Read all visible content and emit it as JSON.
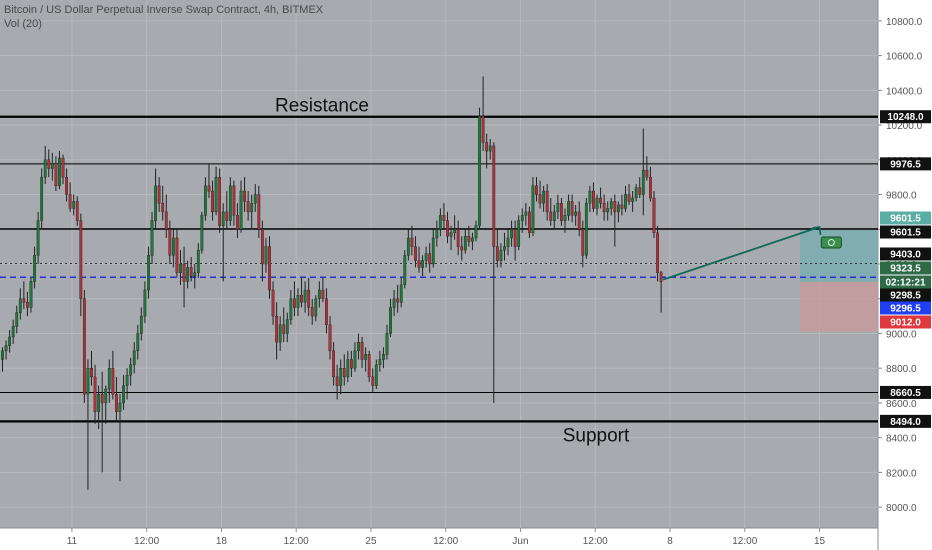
{
  "header": {
    "title": "Bitcoin / US Dollar Perpetual Inverse Swap Contract, 4h, BITMEX",
    "volume_label": "Vol (20)"
  },
  "colors": {
    "background": "#a7aaae",
    "axis_background": "#ffffff",
    "grid": "#b6b9bd",
    "up_candle": "#1e7a3a",
    "down_candle": "#b3303a",
    "wick": "#222222",
    "blue_line": "#2a2ae0",
    "profit_zone": "#7aaeb2",
    "loss_zone": "#c59b9e",
    "arrow": "#13685c",
    "badge_dark": "#111111",
    "badge_blue": "#1f3ff2",
    "badge_red": "#e0383e",
    "badge_green": "#2e6a46",
    "badge_teal": "#5aaea4"
  },
  "chart_data": {
    "type": "candlestick",
    "ylim": [
      7880,
      10920
    ],
    "y_ticks": [
      8000,
      8200,
      8400,
      8600,
      8800,
      9000,
      9200,
      9400,
      9600,
      9800,
      10000,
      10200,
      10400,
      10600,
      10800
    ],
    "y_tick_labels": [
      "8000.0",
      "8200.0",
      "8400.0",
      "8600.0",
      "8800.0",
      "9000.0",
      "9200.0",
      "9400.0",
      "9600.0",
      "9800.0",
      "10000.0",
      "10200.0",
      "10400.0",
      "10600.0",
      "10800.0"
    ],
    "x_labels": [
      "11",
      "12:00",
      "18",
      "12:00",
      "25",
      "12:00",
      "Jun",
      "12:00",
      "8",
      "12:00",
      "15"
    ],
    "x_ticks_bar": [
      19.5,
      40.5,
      61.5,
      82.5,
      103.5,
      124.5,
      145.5,
      166.5,
      187.5,
      208.5,
      229.5
    ],
    "grid": true,
    "annotations": [
      {
        "text": "Resistance",
        "near_price": 10248
      },
      {
        "text": "Support",
        "near_price": 8494
      }
    ],
    "levels": [
      {
        "price": 10248,
        "label": "10248.0",
        "style": "thick"
      },
      {
        "price": 9976.5,
        "label": "9976.5",
        "style": "thin"
      },
      {
        "price": 9601.5,
        "label": "9601.5",
        "style": "medium"
      },
      {
        "price": 9403,
        "label": "9403.0",
        "style": "dotted"
      },
      {
        "price": 9323.5,
        "label": "9323.5",
        "style": "blue-dashed"
      },
      {
        "price": 8660.5,
        "label": "8660.5",
        "style": "thin"
      },
      {
        "price": 8494,
        "label": "8494.0",
        "style": "thick"
      }
    ],
    "price_badges": [
      {
        "price": 9601.5,
        "label": "9601.5",
        "kind": "teal"
      },
      {
        "price": 9601.5,
        "label": "9601.5",
        "kind": "dark"
      },
      {
        "price": 9403,
        "label": "9403.0",
        "kind": "dark"
      },
      {
        "price": 9323.5,
        "label": "9323.5",
        "kind": "green"
      },
      {
        "price": 9298.5,
        "label": "02:12:21",
        "kind": "green"
      },
      {
        "price": 9298.5,
        "label": "9298.5",
        "kind": "dark"
      },
      {
        "price": 9296.5,
        "label": "9296.5",
        "kind": "blue"
      },
      {
        "price": 9012,
        "label": "9012.0",
        "kind": "red"
      }
    ],
    "position": {
      "entry": 9296.5,
      "target": 9601.5,
      "stop": 9012,
      "start_bar": 224,
      "end_bar": 246
    },
    "candles": [
      [
        8850,
        8920,
        8780,
        8900
      ],
      [
        8900,
        8960,
        8850,
        8930
      ],
      [
        8930,
        9020,
        8890,
        8980
      ],
      [
        8980,
        9080,
        8940,
        9040
      ],
      [
        9040,
        9160,
        9000,
        9120
      ],
      [
        9120,
        9260,
        9080,
        9200
      ],
      [
        9200,
        9300,
        9140,
        9180
      ],
      [
        9180,
        9240,
        9100,
        9150
      ],
      [
        9150,
        9320,
        9120,
        9300
      ],
      [
        9300,
        9500,
        9260,
        9450
      ],
      [
        9450,
        9700,
        9400,
        9650
      ],
      [
        9650,
        9950,
        9600,
        9900
      ],
      [
        9900,
        10080,
        9860,
        10000
      ],
      [
        10000,
        10060,
        9900,
        9950
      ],
      [
        9950,
        10040,
        9880,
        9980
      ],
      [
        9980,
        10020,
        9820,
        9850
      ],
      [
        9850,
        10050,
        9830,
        10010
      ],
      [
        10010,
        10030,
        9860,
        9900
      ],
      [
        9900,
        9950,
        9760,
        9800
      ],
      [
        9800,
        9870,
        9700,
        9720
      ],
      [
        9720,
        9800,
        9680,
        9760
      ],
      [
        9760,
        9790,
        9620,
        9650
      ],
      [
        9650,
        9690,
        9100,
        9200
      ],
      [
        9200,
        9250,
        8600,
        8650
      ],
      [
        8650,
        8850,
        8100,
        8800
      ],
      [
        8800,
        8900,
        8700,
        8750
      ],
      [
        8750,
        8820,
        8480,
        8550
      ],
      [
        8550,
        8700,
        8450,
        8650
      ],
      [
        8650,
        8780,
        8200,
        8600
      ],
      [
        8600,
        8700,
        8480,
        8680
      ],
      [
        8680,
        8850,
        8600,
        8800
      ],
      [
        8800,
        8900,
        8620,
        8650
      ],
      [
        8650,
        8750,
        8500,
        8550
      ],
      [
        8550,
        8650,
        8150,
        8600
      ],
      [
        8600,
        8760,
        8560,
        8700
      ],
      [
        8700,
        8800,
        8620,
        8760
      ],
      [
        8760,
        8860,
        8700,
        8820
      ],
      [
        8820,
        8950,
        8770,
        8900
      ],
      [
        8900,
        9050,
        8850,
        9000
      ],
      [
        9000,
        9150,
        8960,
        9100
      ],
      [
        9100,
        9300,
        9060,
        9250
      ],
      [
        9250,
        9500,
        9200,
        9450
      ],
      [
        9450,
        9700,
        9400,
        9650
      ],
      [
        9650,
        9950,
        9600,
        9850
      ],
      [
        9850,
        9900,
        9700,
        9750
      ],
      [
        9750,
        9850,
        9650,
        9700
      ],
      [
        9700,
        9800,
        9550,
        9600
      ],
      [
        9600,
        9650,
        9400,
        9450
      ],
      [
        9450,
        9600,
        9380,
        9550
      ],
      [
        9550,
        9600,
        9320,
        9350
      ],
      [
        9350,
        9480,
        9280,
        9400
      ],
      [
        9400,
        9500,
        9150,
        9300
      ],
      [
        9300,
        9420,
        9260,
        9380
      ],
      [
        9380,
        9440,
        9300,
        9330
      ],
      [
        9330,
        9400,
        9260,
        9350
      ],
      [
        9350,
        9520,
        9320,
        9480
      ],
      [
        9480,
        9700,
        9460,
        9680
      ],
      [
        9680,
        9900,
        9650,
        9850
      ],
      [
        9850,
        9980,
        9780,
        9820
      ],
      [
        9820,
        9880,
        9650,
        9700
      ],
      [
        9700,
        9960,
        9680,
        9900
      ],
      [
        9900,
        9950,
        9580,
        9620
      ],
      [
        9620,
        9750,
        9300,
        9700
      ],
      [
        9700,
        9820,
        9600,
        9650
      ],
      [
        9650,
        9900,
        9620,
        9850
      ],
      [
        9850,
        9880,
        9620,
        9680
      ],
      [
        9680,
        9750,
        9550,
        9600
      ],
      [
        9600,
        9880,
        9580,
        9820
      ],
      [
        9820,
        9900,
        9700,
        9760
      ],
      [
        9760,
        9820,
        9650,
        9700
      ],
      [
        9700,
        9800,
        9600,
        9750
      ],
      [
        9750,
        9860,
        9700,
        9800
      ],
      [
        9800,
        9850,
        9550,
        9600
      ],
      [
        9600,
        9650,
        9300,
        9400
      ],
      [
        9400,
        9550,
        9350,
        9500
      ],
      [
        9500,
        9560,
        9200,
        9250
      ],
      [
        9250,
        9300,
        9050,
        9100
      ],
      [
        9100,
        9180,
        8850,
        8950
      ],
      [
        8950,
        9100,
        8900,
        9050
      ],
      [
        9050,
        9150,
        8950,
        9000
      ],
      [
        9000,
        9120,
        8950,
        9080
      ],
      [
        9080,
        9250,
        9050,
        9200
      ],
      [
        9200,
        9300,
        9100,
        9150
      ],
      [
        9150,
        9260,
        9100,
        9220
      ],
      [
        9220,
        9320,
        9150,
        9180
      ],
      [
        9180,
        9300,
        9120,
        9250
      ],
      [
        9250,
        9320,
        9100,
        9150
      ],
      [
        9150,
        9200,
        9050,
        9100
      ],
      [
        9100,
        9220,
        9070,
        9200
      ],
      [
        9200,
        9300,
        9150,
        9250
      ],
      [
        9250,
        9320,
        9180,
        9200
      ],
      [
        9200,
        9260,
        9000,
        9050
      ],
      [
        9050,
        9100,
        8850,
        8900
      ],
      [
        8900,
        8950,
        8700,
        8750
      ],
      [
        8750,
        8820,
        8620,
        8700
      ],
      [
        8700,
        8850,
        8650,
        8800
      ],
      [
        8800,
        8880,
        8700,
        8750
      ],
      [
        8750,
        8900,
        8720,
        8850
      ],
      [
        8850,
        8900,
        8750,
        8800
      ],
      [
        8800,
        8950,
        8780,
        8900
      ],
      [
        8900,
        9000,
        8850,
        8950
      ],
      [
        8950,
        8980,
        8800,
        8850
      ],
      [
        8850,
        8920,
        8780,
        8880
      ],
      [
        8880,
        8900,
        8720,
        8750
      ],
      [
        8750,
        8800,
        8660,
        8700
      ],
      [
        8700,
        8850,
        8680,
        8820
      ],
      [
        8820,
        8900,
        8780,
        8850
      ],
      [
        8850,
        8920,
        8800,
        8880
      ],
      [
        8880,
        9050,
        8850,
        9000
      ],
      [
        9000,
        9200,
        8980,
        9150
      ],
      [
        9150,
        9250,
        9100,
        9200
      ],
      [
        9200,
        9280,
        9120,
        9180
      ],
      [
        9180,
        9320,
        9150,
        9280
      ],
      [
        9280,
        9480,
        9260,
        9450
      ],
      [
        9450,
        9600,
        9420,
        9550
      ],
      [
        9550,
        9620,
        9450,
        9500
      ],
      [
        9500,
        9560,
        9380,
        9420
      ],
      [
        9420,
        9500,
        9350,
        9380
      ],
      [
        9380,
        9450,
        9330,
        9420
      ],
      [
        9420,
        9500,
        9380,
        9460
      ],
      [
        9460,
        9520,
        9350,
        9400
      ],
      [
        9400,
        9600,
        9380,
        9550
      ],
      [
        9550,
        9650,
        9500,
        9600
      ],
      [
        9600,
        9720,
        9560,
        9680
      ],
      [
        9680,
        9750,
        9600,
        9650
      ],
      [
        9650,
        9700,
        9520,
        9560
      ],
      [
        9560,
        9620,
        9480,
        9580
      ],
      [
        9580,
        9680,
        9540,
        9600
      ],
      [
        9600,
        9650,
        9450,
        9500
      ],
      [
        9500,
        9560,
        9420,
        9480
      ],
      [
        9480,
        9600,
        9460,
        9560
      ],
      [
        9560,
        9620,
        9500,
        9530
      ],
      [
        9530,
        9580,
        9480,
        9550
      ],
      [
        9550,
        9650,
        9530,
        9620
      ],
      [
        9620,
        10300,
        9600,
        10250
      ],
      [
        10250,
        10480,
        10050,
        10100
      ],
      [
        10100,
        10150,
        9950,
        10050
      ],
      [
        10050,
        10120,
        10000,
        10080
      ],
      [
        10080,
        10100,
        8600,
        9500
      ],
      [
        9500,
        9600,
        9380,
        9420
      ],
      [
        9420,
        9520,
        9380,
        9480
      ],
      [
        9480,
        9580,
        9420,
        9500
      ],
      [
        9500,
        9600,
        9450,
        9550
      ],
      [
        9550,
        9650,
        9500,
        9600
      ],
      [
        9600,
        9650,
        9420,
        9500
      ],
      [
        9500,
        9680,
        9480,
        9650
      ],
      [
        9650,
        9720,
        9580,
        9680
      ],
      [
        9680,
        9750,
        9620,
        9700
      ],
      [
        9700,
        9730,
        9550,
        9580
      ],
      [
        9580,
        9900,
        9560,
        9850
      ],
      [
        9850,
        9900,
        9760,
        9800
      ],
      [
        9800,
        9880,
        9720,
        9750
      ],
      [
        9750,
        9850,
        9700,
        9820
      ],
      [
        9820,
        9860,
        9650,
        9700
      ],
      [
        9700,
        9780,
        9620,
        9650
      ],
      [
        9650,
        9740,
        9600,
        9700
      ],
      [
        9700,
        9800,
        9660,
        9750
      ],
      [
        9750,
        9780,
        9620,
        9650
      ],
      [
        9650,
        9720,
        9580,
        9680
      ],
      [
        9680,
        9800,
        9650,
        9760
      ],
      [
        9760,
        9800,
        9640,
        9680
      ],
      [
        9680,
        9740,
        9620,
        9700
      ],
      [
        9700,
        9760,
        9560,
        9600
      ],
      [
        9600,
        9650,
        9380,
        9450
      ],
      [
        9450,
        9780,
        9430,
        9750
      ],
      [
        9750,
        9850,
        9700,
        9820
      ],
      [
        9820,
        9870,
        9700,
        9720
      ],
      [
        9720,
        9800,
        9680,
        9780
      ],
      [
        9780,
        9840,
        9720,
        9750
      ],
      [
        9750,
        9800,
        9650,
        9700
      ],
      [
        9700,
        9760,
        9650,
        9720
      ],
      [
        9720,
        9780,
        9680,
        9760
      ],
      [
        9760,
        9800,
        9500,
        9700
      ],
      [
        9700,
        9760,
        9640,
        9740
      ],
      [
        9740,
        9800,
        9680,
        9720
      ],
      [
        9720,
        9850,
        9700,
        9800
      ],
      [
        9800,
        9860,
        9740,
        9760
      ],
      [
        9760,
        9820,
        9700,
        9780
      ],
      [
        9780,
        9860,
        9760,
        9840
      ],
      [
        9840,
        9900,
        9780,
        9800
      ],
      [
        9800,
        10180,
        9680,
        9940
      ],
      [
        9940,
        10020,
        9880,
        9900
      ],
      [
        9900,
        9960,
        9760,
        9780
      ],
      [
        9780,
        9820,
        9550,
        9580
      ],
      [
        9580,
        9620,
        9300,
        9350
      ],
      [
        9350,
        9360,
        9120,
        9298.5
      ]
    ]
  }
}
